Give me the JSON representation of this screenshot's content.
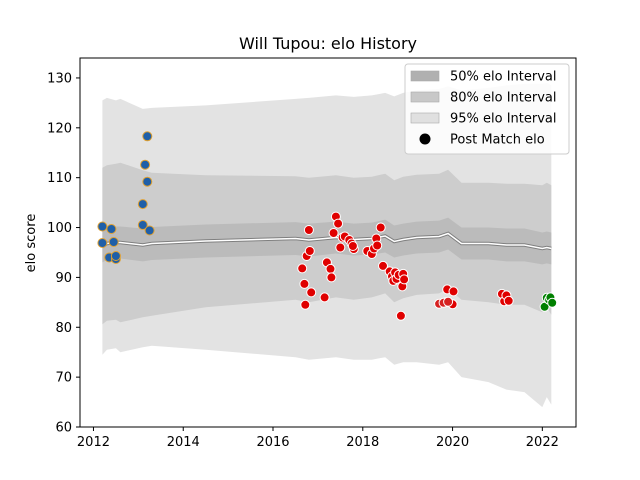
{
  "chart_data": {
    "type": "scatter",
    "title": "Will Tupou: elo History",
    "xlabel": "",
    "ylabel": "elo score",
    "xlim": [
      2011.7,
      2022.75
    ],
    "ylim": [
      60,
      134
    ],
    "xticks": [
      2012,
      2014,
      2016,
      2018,
      2020,
      2022
    ],
    "yticks": [
      60,
      70,
      80,
      90,
      100,
      110,
      120,
      130
    ],
    "legend_position": "top-right",
    "grid": false,
    "colors": {
      "band95": "#e3e3e3",
      "band80": "#cdcdcd",
      "band50": "#bbbbbb",
      "median": "#ffffff",
      "median_edge": "#7f7f7f",
      "legend_patch50": "#b0b0b0",
      "legend_patch80": "#c8c8c8",
      "legend_patch95": "#e0e0e0",
      "point_outline": "#ffffff",
      "group1_fill": "#1f5fa8",
      "group1_edge": "#e0a030",
      "group2_fill": "#e00000",
      "group3_fill": "#d62020",
      "group4_fill": "#008000"
    },
    "legend": [
      {
        "label": "50% elo Interval",
        "swatch": "patch50"
      },
      {
        "label": "80% elo Interval",
        "swatch": "patch80"
      },
      {
        "label": "95% elo Interval",
        "swatch": "patch95"
      },
      {
        "label": "Post Match elo",
        "swatch": "marker"
      }
    ],
    "bands": {
      "x": [
        2012.2,
        2012.3,
        2012.5,
        2012.6,
        2013.1,
        2013.3,
        2014.5,
        2016.5,
        2016.8,
        2017.4,
        2017.8,
        2018.2,
        2018.5,
        2018.7,
        2018.9,
        2019.2,
        2019.7,
        2019.9,
        2020.2,
        2020.8,
        2021.2,
        2021.6,
        2022.0,
        2022.1,
        2022.2
      ],
      "median": [
        96.2,
        96.8,
        97.0,
        97.0,
        96.5,
        96.8,
        97.3,
        97.8,
        97.5,
        98.0,
        97.6,
        97.8,
        98.3,
        97.2,
        97.6,
        98.0,
        98.2,
        98.8,
        96.8,
        96.8,
        96.5,
        96.5,
        95.8,
        96.0,
        95.8
      ],
      "low50": [
        93.0,
        93.5,
        93.8,
        93.8,
        93.2,
        93.5,
        94.0,
        94.5,
        94.2,
        94.8,
        94.4,
        94.6,
        95.0,
        94.0,
        94.4,
        94.8,
        95.0,
        95.6,
        93.6,
        93.6,
        93.2,
        93.2,
        92.6,
        92.8,
        92.6
      ],
      "high50": [
        99.4,
        100.1,
        100.2,
        100.2,
        99.8,
        100.1,
        100.6,
        101.1,
        100.8,
        101.2,
        100.8,
        101.0,
        101.6,
        100.4,
        100.8,
        101.2,
        101.4,
        102.0,
        100.0,
        100.0,
        99.8,
        99.8,
        99.0,
        99.2,
        99.0
      ],
      "low80": [
        80.6,
        81.3,
        81.5,
        81.0,
        82.0,
        82.3,
        84.0,
        85.5,
        85.0,
        86.0,
        85.5,
        86.0,
        86.8,
        85.0,
        85.8,
        86.5,
        86.8,
        87.8,
        85.5,
        85.0,
        84.5,
        84.5,
        83.0,
        84.0,
        82.5
      ],
      "high80": [
        112.0,
        112.5,
        112.8,
        113.0,
        111.5,
        111.0,
        110.5,
        110.3,
        110.0,
        110.5,
        110.0,
        110.2,
        110.8,
        109.5,
        110.2,
        110.6,
        110.8,
        111.6,
        109.0,
        109.0,
        108.8,
        108.8,
        108.5,
        109.0,
        108.5
      ],
      "low95": [
        74.5,
        75.5,
        75.8,
        75.0,
        76.0,
        76.3,
        75.5,
        74.0,
        73.5,
        74.0,
        73.5,
        73.5,
        74.0,
        72.5,
        73.0,
        73.0,
        72.5,
        73.0,
        70.0,
        69.0,
        67.5,
        67.0,
        64.0,
        66.0,
        64.5
      ],
      "high95": [
        125.5,
        126.0,
        125.5,
        125.8,
        123.8,
        124.0,
        124.5,
        125.8,
        126.0,
        126.5,
        126.2,
        126.5,
        127.0,
        126.3,
        127.0,
        127.5,
        127.8,
        128.3,
        127.5,
        128.0,
        128.5,
        128.8,
        128.8,
        129.0,
        128.5
      ]
    },
    "series": [
      {
        "color_key": "group1",
        "points": [
          [
            2012.2,
            100.2
          ],
          [
            2012.2,
            96.9
          ],
          [
            2012.35,
            94.0
          ],
          [
            2012.4,
            99.7
          ],
          [
            2012.45,
            97.1
          ],
          [
            2012.5,
            93.7
          ],
          [
            2012.5,
            94.3
          ],
          [
            2013.1,
            100.5
          ],
          [
            2013.1,
            104.7
          ],
          [
            2013.15,
            112.6
          ],
          [
            2013.2,
            118.3
          ],
          [
            2013.2,
            109.2
          ],
          [
            2013.25,
            99.4
          ]
        ]
      },
      {
        "color_key": "group2",
        "points": [
          [
            2016.65,
            91.8
          ],
          [
            2016.7,
            88.7
          ],
          [
            2016.72,
            84.5
          ],
          [
            2016.75,
            94.3
          ],
          [
            2016.8,
            99.5
          ],
          [
            2016.82,
            95.3
          ],
          [
            2016.85,
            87.0
          ],
          [
            2017.15,
            86.0
          ],
          [
            2017.2,
            93.0
          ],
          [
            2017.28,
            91.7
          ],
          [
            2017.3,
            90.0
          ],
          [
            2017.35,
            98.9
          ],
          [
            2017.4,
            102.2
          ],
          [
            2017.45,
            100.8
          ],
          [
            2017.5,
            96.0
          ],
          [
            2017.55,
            98.0
          ],
          [
            2017.6,
            98.2
          ],
          [
            2017.7,
            97.5
          ],
          [
            2017.75,
            96.8
          ],
          [
            2017.8,
            95.7
          ],
          [
            2017.78,
            96.3
          ],
          [
            2018.1,
            95.3
          ],
          [
            2018.2,
            94.7
          ],
          [
            2018.25,
            95.8
          ],
          [
            2018.3,
            97.8
          ],
          [
            2018.32,
            96.4
          ],
          [
            2018.4,
            100.0
          ],
          [
            2018.45,
            92.3
          ],
          [
            2018.6,
            91.2
          ],
          [
            2018.65,
            90.2
          ],
          [
            2018.68,
            89.3
          ],
          [
            2018.72,
            91.0
          ],
          [
            2018.75,
            89.7
          ],
          [
            2018.8,
            90.5
          ],
          [
            2018.85,
            82.3
          ],
          [
            2018.88,
            88.2
          ],
          [
            2018.9,
            90.7
          ],
          [
            2018.92,
            89.6
          ],
          [
            2019.85,
            85.0
          ],
          [
            2019.88,
            87.6
          ],
          [
            2020.0,
            84.6
          ],
          [
            2020.02,
            87.2
          ],
          [
            2021.1,
            86.7
          ],
          [
            2021.15,
            85.2
          ],
          [
            2021.2,
            86.4
          ],
          [
            2021.25,
            85.3
          ]
        ]
      },
      {
        "color_key": "group3",
        "points": [
          [
            2019.7,
            84.7
          ],
          [
            2019.8,
            84.9
          ],
          [
            2019.9,
            85.1
          ]
        ]
      },
      {
        "color_key": "group4",
        "points": [
          [
            2022.05,
            84.1
          ],
          [
            2022.1,
            85.9
          ],
          [
            2022.15,
            85.5
          ],
          [
            2022.18,
            86.0
          ],
          [
            2022.22,
            84.9
          ]
        ]
      }
    ]
  }
}
